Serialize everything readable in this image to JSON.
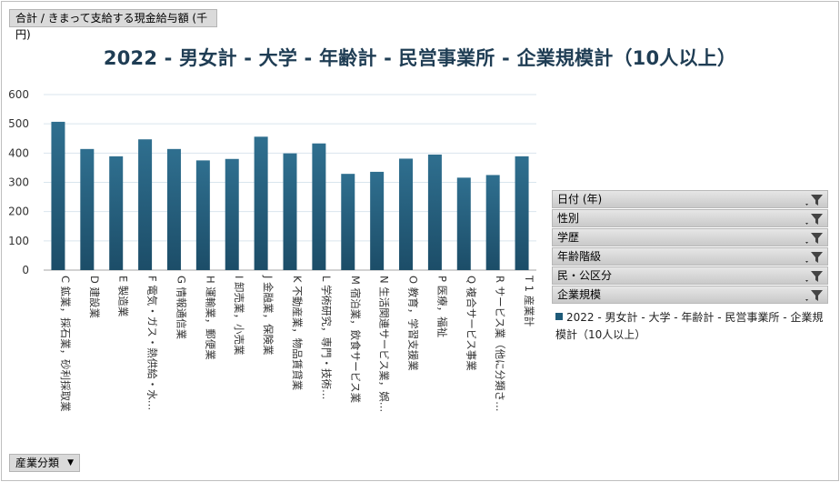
{
  "measure_button": {
    "label": "合計 / きまって支給する現金給与額 (千円)"
  },
  "axis_button": {
    "label": "産業分類",
    "icon": "dropdown-arrow-icon"
  },
  "filters": [
    {
      "label": "日付 (年)",
      "icon": "filter-icon"
    },
    {
      "label": "性別",
      "icon": "filter-icon"
    },
    {
      "label": "学歴",
      "icon": "filter-icon"
    },
    {
      "label": "年齢階級",
      "icon": "filter-icon"
    },
    {
      "label": "民・公区分",
      "icon": "filter-icon"
    },
    {
      "label": "企業規模",
      "icon": "filter-icon"
    }
  ],
  "legend": {
    "label": "2022 - 男女計 - 大学 - 年齢計 - 民営事業所 - 企業規模計（10人以上）"
  },
  "chart_data": {
    "type": "bar",
    "title": "2022 - 男女計 - 大学 - 年齢計 - 民営事業所 - 企業規模計（10人以上）",
    "categories": [
      "C 鉱業，採石業，砂利採取業",
      "D 建設業",
      "E 製造業",
      "F 電気・ガス・熱供給・水…",
      "G 情報通信業",
      "H 運輸業，郵便業",
      "I 卸売業，小売業",
      "J 金融業，保険業",
      "K 不動産業，物品賃貸業",
      "L 学術研究，専門・技術…",
      "M 宿泊業，飲食サービス業",
      "N 生活関連サービス業，娯…",
      "O 教育，学習支援業",
      "P 医療，福祉",
      "Q 複合サービス事業",
      "R サービス業（他に分類さ…",
      "T 1 産業計"
    ],
    "series": [
      {
        "name": "2022 - 男女計 - 大学 - 年齢計 - 民営事業所 - 企業規模計（10人以上）",
        "values": [
          507,
          414,
          389,
          447,
          414,
          375,
          380,
          456,
          399,
          433,
          329,
          336,
          381,
          395,
          316,
          325,
          389
        ]
      }
    ],
    "ylim": [
      0,
      600
    ],
    "yticks": [
      0,
      100,
      200,
      300,
      400,
      500,
      600
    ],
    "grid": true,
    "legend_position": "right",
    "bar_color_top": "#2f6f8f",
    "bar_color_bottom": "#1c4d68",
    "axis_text_color": "#333333"
  }
}
